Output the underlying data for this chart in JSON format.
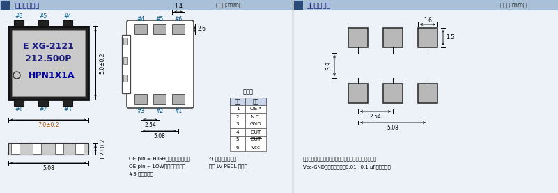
{
  "title_left": "外部尺寸规格",
  "title_right": "推荐焊盘尺寸",
  "unit_left": "（单位:mm）",
  "unit_right": "（单位:mm）",
  "header_bg": "#a0b8d8",
  "header_dark": "#3a5a8a",
  "bg_color": "#ffffff",
  "section_bg": "#eef2f8",
  "label_line1": "E XG-2121",
  "label_line2": "212.500P",
  "label_line3": "HPN1X1A",
  "dim_70": "7.0±0.2",
  "dim_50": "5.0±0.2",
  "dim_508b": "5.08",
  "dim_12": "1.2±0.2",
  "dim_254r": "2.54",
  "dim_508r": "5.08",
  "dim_14": "1.4",
  "dim_26": "2.6",
  "dim_39": "3.9",
  "dim_16": "1.6",
  "dim_15": "1.5",
  "dim_254p": "2.54",
  "dim_508p": "5.08",
  "pin_title": "引脚图",
  "pin_h0": "引脚",
  "pin_h1": "连接",
  "pin_data": [
    [
      "1",
      "OE *"
    ],
    [
      "2",
      "N.C."
    ],
    [
      "3",
      "GND"
    ],
    [
      "4",
      "OUT"
    ],
    [
      "5",
      "OUT"
    ],
    [
      "6",
      "Vcc"
    ]
  ],
  "pin5_overline": true,
  "note1": "OE pin = HIGH：指定的频率输出",
  "note2": "OE pin = LOW：输出为高阻抗",
  "note3": "#3 连接到外光",
  "note4": "*) 内置的备用功能.",
  "note5": "（只 LV-PECL 输出）",
  "note6": "为了维持稳定运行，在接近晶体产品的电源输入端处（在",
  "note7": "Vcc-GND之间）添加一个0.01~0.1 μF的去耦电容"
}
